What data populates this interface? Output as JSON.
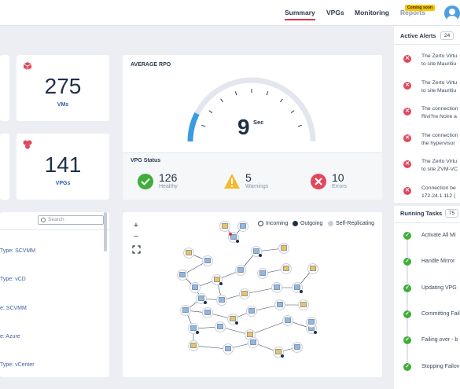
{
  "nav": {
    "items": [
      "Summary",
      "VPGs",
      "Monitoring",
      "Reports"
    ],
    "coming_soon": "Coming soon"
  },
  "stats": {
    "vms": {
      "value": "275",
      "label": "VMs"
    },
    "vpgs": {
      "value": "141",
      "label": "VPGs"
    }
  },
  "rpo": {
    "title": "AVERAGE RPO",
    "value": "9",
    "unit": "Sec",
    "level": 0.15
  },
  "vpg_status": {
    "title": "VPG Status",
    "healthy": {
      "value": "126",
      "label": "Healthy"
    },
    "warnings": {
      "value": "5",
      "label": "Warnings"
    },
    "errors": {
      "value": "10",
      "label": "Errors"
    }
  },
  "list": {
    "search_placeholder": "Search",
    "items": [
      "Type: SCVMM",
      "Type: vCD",
      "e: SCVMM",
      "e: Azure",
      "Type: vCenter"
    ]
  },
  "map": {
    "zoom_in": "+",
    "zoom_out": "−",
    "legend": [
      "Incoming",
      "Outgoing",
      "Self-Replicating"
    ]
  },
  "alerts": {
    "title": "Active Alerts",
    "count": "24",
    "items": [
      [
        "The Zerto Virtu",
        "to site Mauritiu"
      ],
      [
        "The Zerto Virtu",
        "to site Mauritiu"
      ],
      [
        "The connection",
        "Rivi?re Noire a"
      ],
      [
        "The connection",
        "the hypervisor"
      ],
      [
        "The Zerto Virtu",
        "to site ZVM-VC"
      ],
      [
        "Connection be",
        "172.24.1.112 ("
      ]
    ]
  },
  "tasks": {
    "title": "Running Tasks",
    "count": "75",
    "items": [
      "Activate All Mi",
      "Handle Mirror",
      "Updating VPG",
      "Committing Fail",
      "Failing over - b",
      "Stopping Failov"
    ]
  },
  "colors": {
    "accent": "#e0344b",
    "healthy": "#3fae3a",
    "warning": "#f5b82e",
    "error": "#e0485e",
    "gauge": "#3b9be0"
  }
}
